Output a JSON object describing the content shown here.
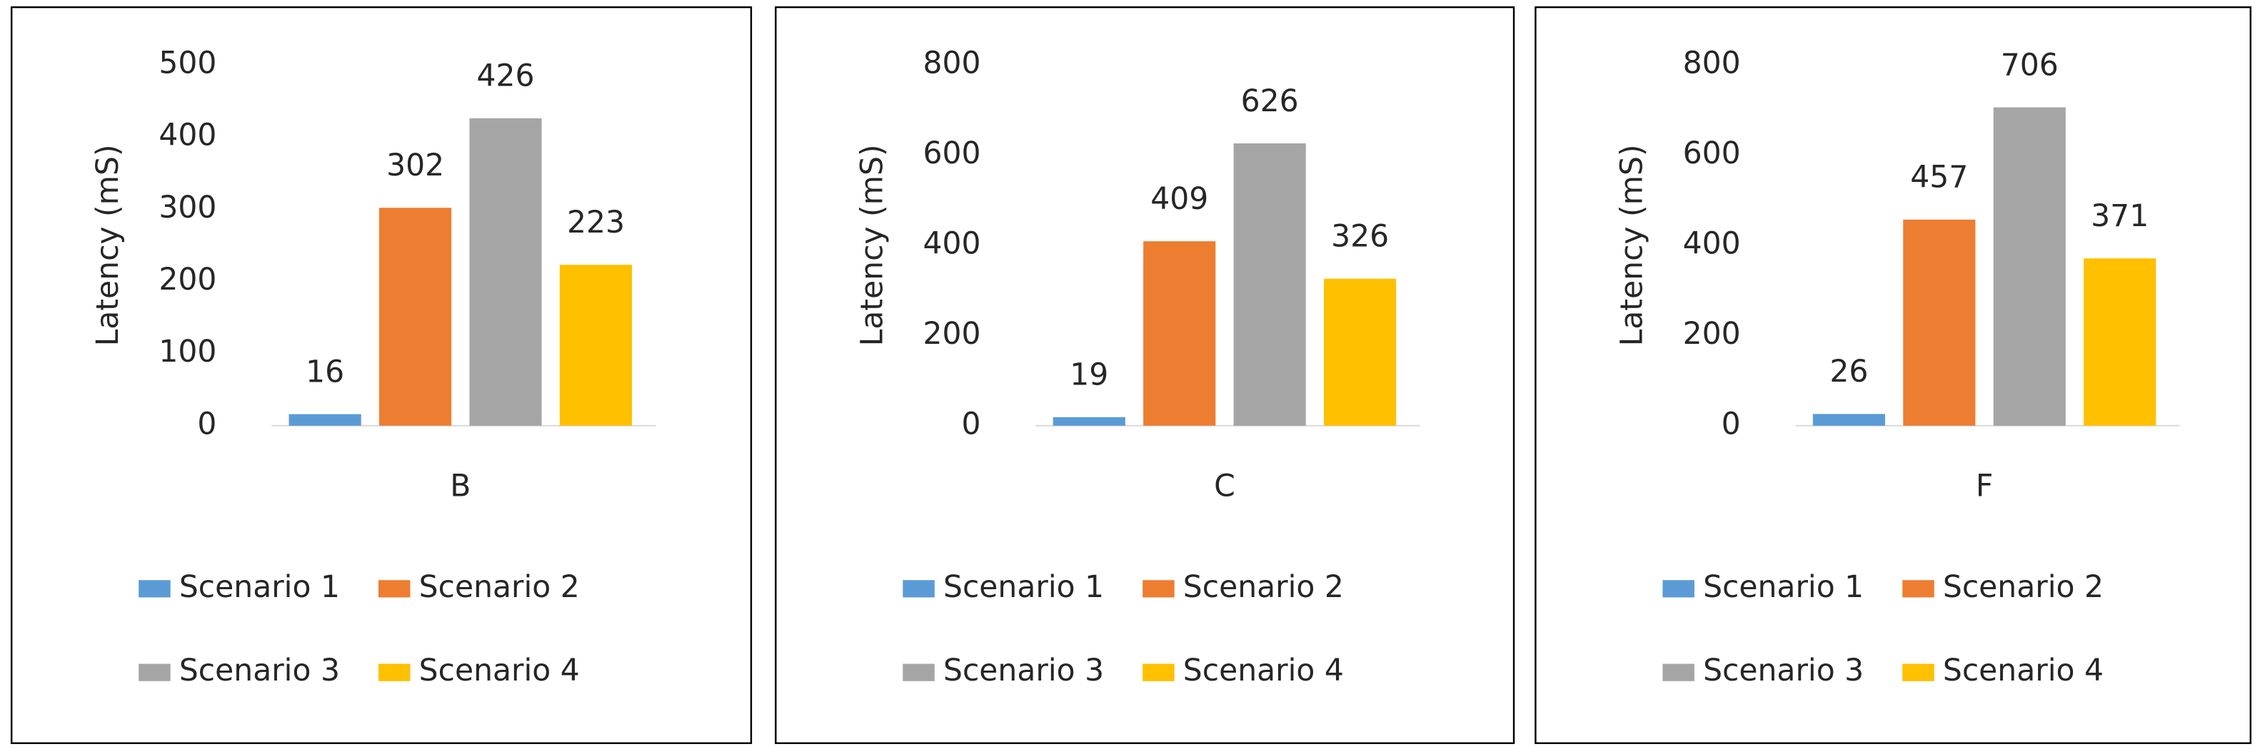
{
  "chart_data": [
    {
      "type": "bar",
      "y_label": "Latency (mS)",
      "categories": [
        "B"
      ],
      "series": [
        {
          "name": "Scenario 1",
          "color": "#5b9bd5",
          "values": [
            16
          ]
        },
        {
          "name": "Scenario 2",
          "color": "#ed7d31",
          "values": [
            302
          ]
        },
        {
          "name": "Scenario 3",
          "color": "#a5a5a5",
          "values": [
            426
          ]
        },
        {
          "name": "Scenario 4",
          "color": "#ffc000",
          "values": [
            223
          ]
        }
      ],
      "ylim": [
        0,
        500
      ],
      "yticks": [
        0,
        100,
        200,
        300,
        400,
        500
      ],
      "grid": false,
      "legend": "bottom"
    },
    {
      "type": "bar",
      "y_label": "Latency (mS)",
      "categories": [
        "C"
      ],
      "series": [
        {
          "name": "Scenario 1",
          "color": "#5b9bd5",
          "values": [
            19
          ]
        },
        {
          "name": "Scenario 2",
          "color": "#ed7d31",
          "values": [
            409
          ]
        },
        {
          "name": "Scenario 3",
          "color": "#a5a5a5",
          "values": [
            626
          ]
        },
        {
          "name": "Scenario 4",
          "color": "#ffc000",
          "values": [
            326
          ]
        }
      ],
      "ylim": [
        0,
        800
      ],
      "yticks": [
        0,
        200,
        400,
        600,
        800
      ],
      "grid": false,
      "legend": "bottom"
    },
    {
      "type": "bar",
      "y_label": "Latency (mS)",
      "categories": [
        "F"
      ],
      "series": [
        {
          "name": "Scenario 1",
          "color": "#5b9bd5",
          "values": [
            26
          ]
        },
        {
          "name": "Scenario 2",
          "color": "#ed7d31",
          "values": [
            457
          ]
        },
        {
          "name": "Scenario 3",
          "color": "#a5a5a5",
          "values": [
            706
          ]
        },
        {
          "name": "Scenario 4",
          "color": "#ffc000",
          "values": [
            371
          ]
        }
      ],
      "ylim": [
        0,
        800
      ],
      "yticks": [
        0,
        200,
        400,
        600,
        800
      ],
      "grid": false,
      "legend": "bottom"
    }
  ]
}
